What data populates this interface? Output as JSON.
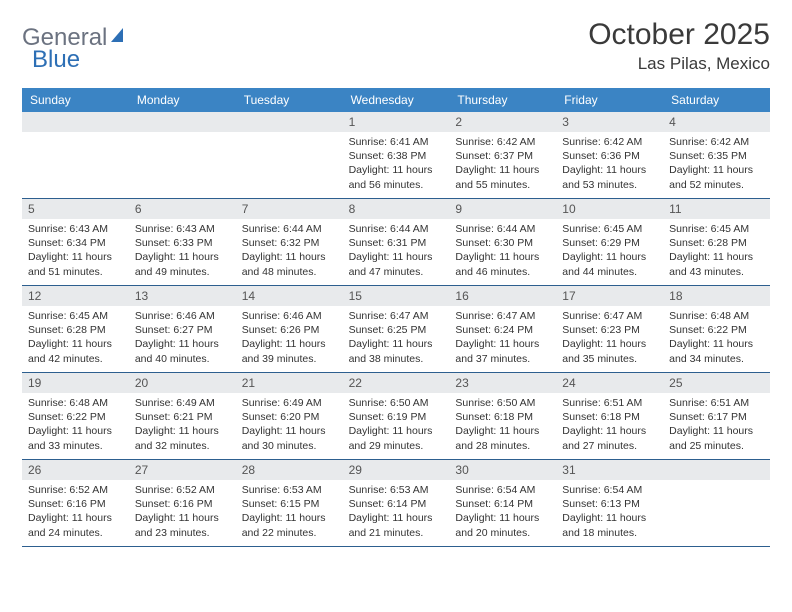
{
  "logo": {
    "text_gray": "General",
    "text_blue": "Blue"
  },
  "title": "October 2025",
  "location": "Las Pilas, Mexico",
  "colors": {
    "header_bg": "#3b84c4",
    "header_text": "#ffffff",
    "daynum_bg": "#e8eaec",
    "week_border": "#2d5f8f",
    "logo_gray": "#6b7280",
    "logo_blue": "#2d6fb5",
    "body_text": "#333333"
  },
  "day_headers": [
    "Sunday",
    "Monday",
    "Tuesday",
    "Wednesday",
    "Thursday",
    "Friday",
    "Saturday"
  ],
  "weeks": [
    [
      {
        "day": "",
        "sunrise": "",
        "sunset": "",
        "daylight": ""
      },
      {
        "day": "",
        "sunrise": "",
        "sunset": "",
        "daylight": ""
      },
      {
        "day": "",
        "sunrise": "",
        "sunset": "",
        "daylight": ""
      },
      {
        "day": "1",
        "sunrise": "Sunrise: 6:41 AM",
        "sunset": "Sunset: 6:38 PM",
        "daylight": "Daylight: 11 hours and 56 minutes."
      },
      {
        "day": "2",
        "sunrise": "Sunrise: 6:42 AM",
        "sunset": "Sunset: 6:37 PM",
        "daylight": "Daylight: 11 hours and 55 minutes."
      },
      {
        "day": "3",
        "sunrise": "Sunrise: 6:42 AM",
        "sunset": "Sunset: 6:36 PM",
        "daylight": "Daylight: 11 hours and 53 minutes."
      },
      {
        "day": "4",
        "sunrise": "Sunrise: 6:42 AM",
        "sunset": "Sunset: 6:35 PM",
        "daylight": "Daylight: 11 hours and 52 minutes."
      }
    ],
    [
      {
        "day": "5",
        "sunrise": "Sunrise: 6:43 AM",
        "sunset": "Sunset: 6:34 PM",
        "daylight": "Daylight: 11 hours and 51 minutes."
      },
      {
        "day": "6",
        "sunrise": "Sunrise: 6:43 AM",
        "sunset": "Sunset: 6:33 PM",
        "daylight": "Daylight: 11 hours and 49 minutes."
      },
      {
        "day": "7",
        "sunrise": "Sunrise: 6:44 AM",
        "sunset": "Sunset: 6:32 PM",
        "daylight": "Daylight: 11 hours and 48 minutes."
      },
      {
        "day": "8",
        "sunrise": "Sunrise: 6:44 AM",
        "sunset": "Sunset: 6:31 PM",
        "daylight": "Daylight: 11 hours and 47 minutes."
      },
      {
        "day": "9",
        "sunrise": "Sunrise: 6:44 AM",
        "sunset": "Sunset: 6:30 PM",
        "daylight": "Daylight: 11 hours and 46 minutes."
      },
      {
        "day": "10",
        "sunrise": "Sunrise: 6:45 AM",
        "sunset": "Sunset: 6:29 PM",
        "daylight": "Daylight: 11 hours and 44 minutes."
      },
      {
        "day": "11",
        "sunrise": "Sunrise: 6:45 AM",
        "sunset": "Sunset: 6:28 PM",
        "daylight": "Daylight: 11 hours and 43 minutes."
      }
    ],
    [
      {
        "day": "12",
        "sunrise": "Sunrise: 6:45 AM",
        "sunset": "Sunset: 6:28 PM",
        "daylight": "Daylight: 11 hours and 42 minutes."
      },
      {
        "day": "13",
        "sunrise": "Sunrise: 6:46 AM",
        "sunset": "Sunset: 6:27 PM",
        "daylight": "Daylight: 11 hours and 40 minutes."
      },
      {
        "day": "14",
        "sunrise": "Sunrise: 6:46 AM",
        "sunset": "Sunset: 6:26 PM",
        "daylight": "Daylight: 11 hours and 39 minutes."
      },
      {
        "day": "15",
        "sunrise": "Sunrise: 6:47 AM",
        "sunset": "Sunset: 6:25 PM",
        "daylight": "Daylight: 11 hours and 38 minutes."
      },
      {
        "day": "16",
        "sunrise": "Sunrise: 6:47 AM",
        "sunset": "Sunset: 6:24 PM",
        "daylight": "Daylight: 11 hours and 37 minutes."
      },
      {
        "day": "17",
        "sunrise": "Sunrise: 6:47 AM",
        "sunset": "Sunset: 6:23 PM",
        "daylight": "Daylight: 11 hours and 35 minutes."
      },
      {
        "day": "18",
        "sunrise": "Sunrise: 6:48 AM",
        "sunset": "Sunset: 6:22 PM",
        "daylight": "Daylight: 11 hours and 34 minutes."
      }
    ],
    [
      {
        "day": "19",
        "sunrise": "Sunrise: 6:48 AM",
        "sunset": "Sunset: 6:22 PM",
        "daylight": "Daylight: 11 hours and 33 minutes."
      },
      {
        "day": "20",
        "sunrise": "Sunrise: 6:49 AM",
        "sunset": "Sunset: 6:21 PM",
        "daylight": "Daylight: 11 hours and 32 minutes."
      },
      {
        "day": "21",
        "sunrise": "Sunrise: 6:49 AM",
        "sunset": "Sunset: 6:20 PM",
        "daylight": "Daylight: 11 hours and 30 minutes."
      },
      {
        "day": "22",
        "sunrise": "Sunrise: 6:50 AM",
        "sunset": "Sunset: 6:19 PM",
        "daylight": "Daylight: 11 hours and 29 minutes."
      },
      {
        "day": "23",
        "sunrise": "Sunrise: 6:50 AM",
        "sunset": "Sunset: 6:18 PM",
        "daylight": "Daylight: 11 hours and 28 minutes."
      },
      {
        "day": "24",
        "sunrise": "Sunrise: 6:51 AM",
        "sunset": "Sunset: 6:18 PM",
        "daylight": "Daylight: 11 hours and 27 minutes."
      },
      {
        "day": "25",
        "sunrise": "Sunrise: 6:51 AM",
        "sunset": "Sunset: 6:17 PM",
        "daylight": "Daylight: 11 hours and 25 minutes."
      }
    ],
    [
      {
        "day": "26",
        "sunrise": "Sunrise: 6:52 AM",
        "sunset": "Sunset: 6:16 PM",
        "daylight": "Daylight: 11 hours and 24 minutes."
      },
      {
        "day": "27",
        "sunrise": "Sunrise: 6:52 AM",
        "sunset": "Sunset: 6:16 PM",
        "daylight": "Daylight: 11 hours and 23 minutes."
      },
      {
        "day": "28",
        "sunrise": "Sunrise: 6:53 AM",
        "sunset": "Sunset: 6:15 PM",
        "daylight": "Daylight: 11 hours and 22 minutes."
      },
      {
        "day": "29",
        "sunrise": "Sunrise: 6:53 AM",
        "sunset": "Sunset: 6:14 PM",
        "daylight": "Daylight: 11 hours and 21 minutes."
      },
      {
        "day": "30",
        "sunrise": "Sunrise: 6:54 AM",
        "sunset": "Sunset: 6:14 PM",
        "daylight": "Daylight: 11 hours and 20 minutes."
      },
      {
        "day": "31",
        "sunrise": "Sunrise: 6:54 AM",
        "sunset": "Sunset: 6:13 PM",
        "daylight": "Daylight: 11 hours and 18 minutes."
      },
      {
        "day": "",
        "sunrise": "",
        "sunset": "",
        "daylight": ""
      }
    ]
  ]
}
